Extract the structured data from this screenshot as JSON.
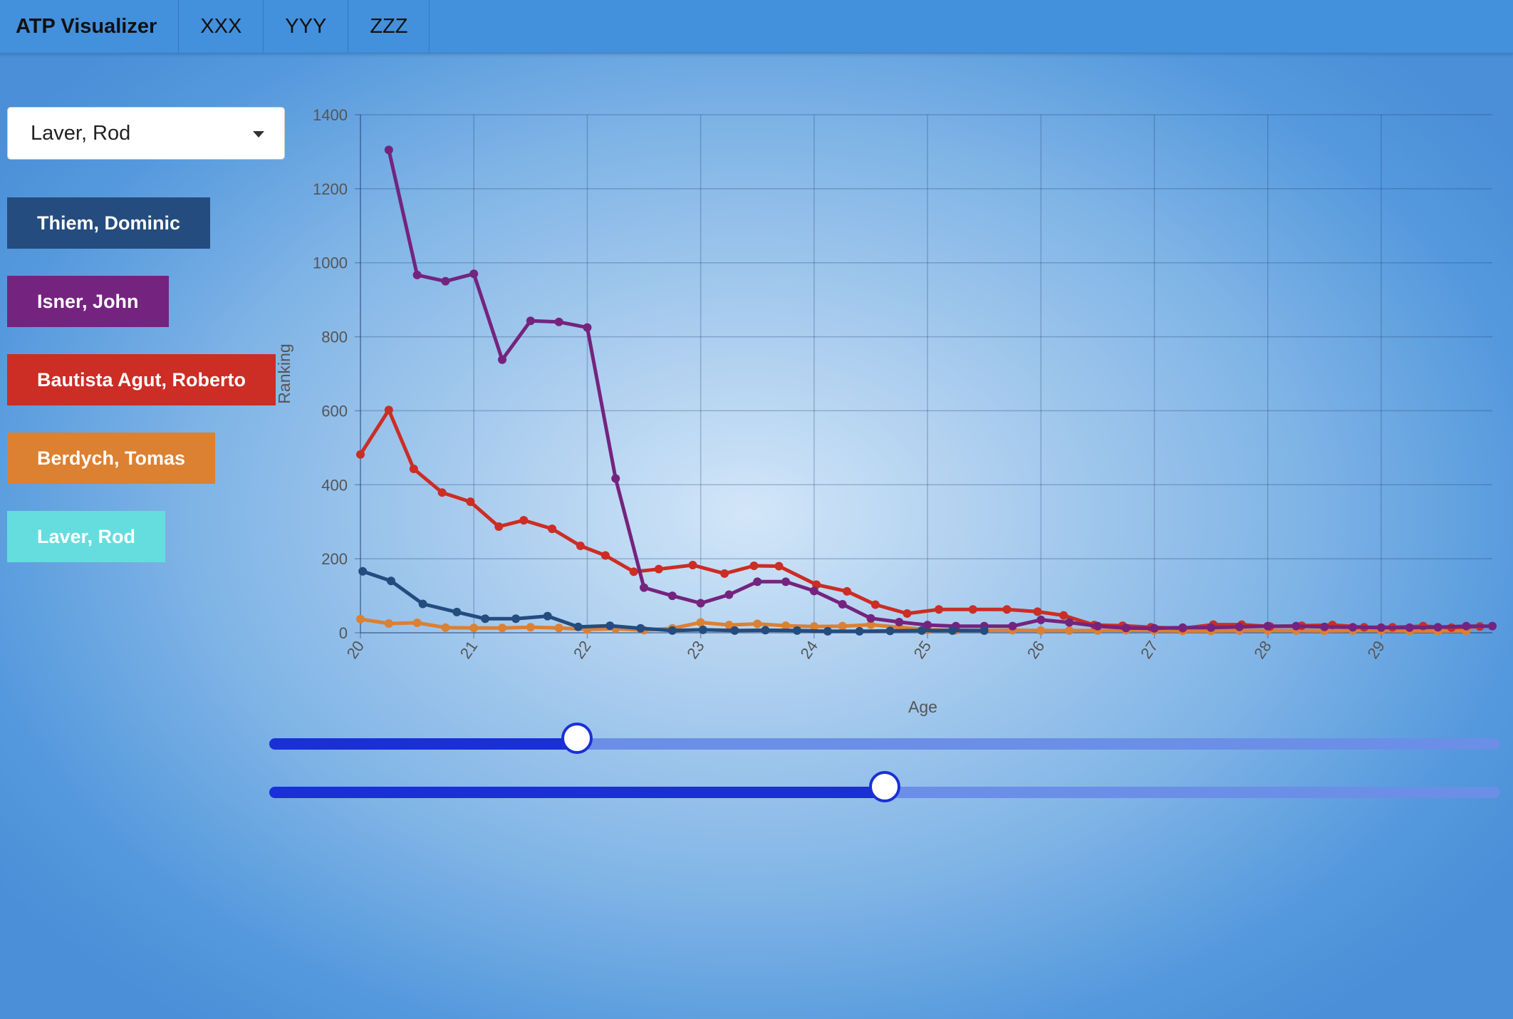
{
  "navbar": {
    "brand": "ATP Visualizer",
    "items": [
      "XXX",
      "YYY",
      "ZZZ"
    ]
  },
  "player_select": {
    "value": "Laver, Rod"
  },
  "players": [
    {
      "label": "Thiem, Dominic",
      "color": "#244c7e"
    },
    {
      "label": "Isner, John",
      "color": "#74247e"
    },
    {
      "label": "Bautista Agut, Roberto",
      "color": "#cc2d24"
    },
    {
      "label": "Berdych, Tomas",
      "color": "#dc8032"
    },
    {
      "label": "Laver, Rod",
      "color": "#65ddde"
    }
  ],
  "sliders": [
    {
      "value_fraction": 0.25
    },
    {
      "value_fraction": 0.5
    }
  ],
  "chart_data": {
    "type": "line",
    "xlabel": "Age",
    "ylabel": "Ranking",
    "xlim": [
      20,
      29.98
    ],
    "ylim": [
      0,
      1400
    ],
    "x_ticks": [
      "20",
      "21",
      "22",
      "23",
      "24",
      "25",
      "26",
      "27",
      "28",
      "29"
    ],
    "y_ticks": [
      "0",
      "200",
      "400",
      "600",
      "800",
      "1000",
      "1200",
      "1400"
    ],
    "grid": true,
    "series": [
      {
        "name": "Berdych, Tomas",
        "color": "#dc8032",
        "x": [
          20,
          20.25,
          20.5,
          20.75,
          21,
          21.25,
          21.5,
          21.75,
          22,
          22.25,
          22.5,
          22.75,
          23,
          23.25,
          23.5,
          23.75,
          24,
          24.25,
          24.5,
          24.75,
          25,
          25.25,
          25.5,
          25.75,
          26,
          26.25,
          26.5,
          26.75,
          27,
          27.25,
          27.5,
          27.75,
          28,
          28.25,
          28.5,
          28.75,
          29,
          29.25,
          29.5,
          29.75
        ],
        "y": [
          37,
          25,
          27,
          14,
          13,
          13,
          15,
          13,
          9,
          11,
          7,
          12,
          28,
          21,
          24,
          19,
          17,
          18,
          22,
          15,
          8,
          7,
          6,
          7,
          6,
          6,
          6,
          7,
          6,
          5,
          5,
          6,
          6,
          6,
          5,
          6,
          6,
          5,
          5,
          5
        ]
      },
      {
        "name": "Bautista Agut, Roberto",
        "color": "#cc2d24",
        "x": [
          20,
          20.25,
          20.47,
          20.72,
          20.97,
          21.22,
          21.44,
          21.69,
          21.94,
          22.16,
          22.41,
          22.63,
          22.93,
          23.21,
          23.47,
          23.69,
          24.02,
          24.29,
          24.54,
          24.82,
          25.1,
          25.4,
          25.7,
          25.97,
          26.2,
          26.47,
          26.72,
          26.97,
          27.25,
          27.52,
          27.77,
          28.02,
          28.3,
          28.57,
          28.85,
          29.1,
          29.37,
          29.62,
          29.87
        ],
        "y": [
          482,
          602,
          443,
          379,
          354,
          287,
          304,
          281,
          235,
          209,
          165,
          172,
          183,
          160,
          181,
          180,
          130,
          112,
          76,
          52,
          63,
          63,
          63,
          57,
          47,
          21,
          19,
          15,
          12,
          22,
          22,
          17,
          19,
          21,
          15,
          15,
          18,
          14,
          17
        ]
      },
      {
        "name": "Isner, John",
        "color": "#74247e",
        "x": [
          20.25,
          20.5,
          20.75,
          21,
          21.25,
          21.5,
          21.75,
          22,
          22.25,
          22.5,
          22.75,
          23,
          23.25,
          23.5,
          23.75,
          24,
          24.25,
          24.5,
          24.75,
          25,
          25.25,
          25.5,
          25.75,
          26,
          26.25,
          26.5,
          26.75,
          27,
          27.25,
          27.5,
          27.75,
          28,
          28.25,
          28.5,
          28.75,
          29,
          29.25,
          29.5,
          29.75,
          29.98
        ],
        "y": [
          1305,
          967,
          950,
          970,
          738,
          843,
          840,
          825,
          417,
          122,
          100,
          80,
          103,
          138,
          138,
          113,
          77,
          39,
          29,
          21,
          18,
          18,
          18,
          35,
          28,
          18,
          13,
          12,
          14,
          14,
          16,
          18,
          18,
          16,
          15,
          14,
          14,
          15,
          18,
          18
        ]
      },
      {
        "name": "Thiem, Dominic",
        "color": "#244c7e",
        "x": [
          20.02,
          20.27,
          20.55,
          20.85,
          21.1,
          21.37,
          21.65,
          21.92,
          22.2,
          22.47,
          22.75,
          23.02,
          23.3,
          23.57,
          23.85,
          24.12,
          24.4,
          24.67,
          24.95,
          25.22,
          25.5
        ],
        "y": [
          166,
          140,
          78,
          56,
          38,
          38,
          45,
          16,
          19,
          12,
          6,
          8,
          6,
          7,
          6,
          4,
          4,
          5,
          6,
          6,
          6
        ]
      }
    ]
  }
}
